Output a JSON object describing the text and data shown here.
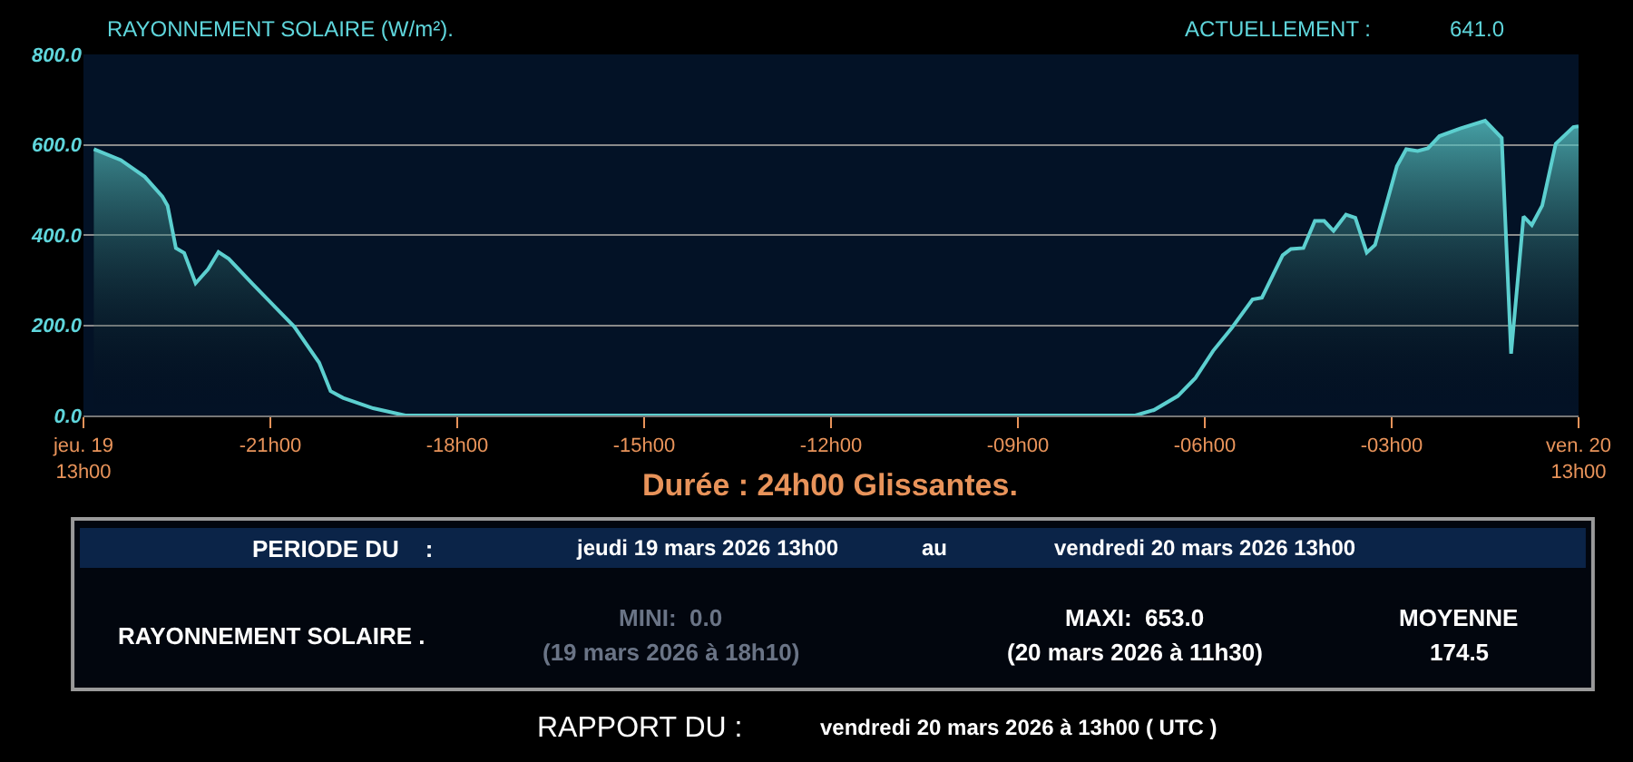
{
  "chart_data": {
    "type": "area",
    "title": "RAYONNEMENT SOLAIRE (W/m²).",
    "x": [
      "2026-03-19T13:10",
      "2026-03-19T13:36",
      "2026-03-19T13:59",
      "2026-03-19T14:16",
      "2026-03-19T14:21",
      "2026-03-19T14:29",
      "2026-03-19T14:37",
      "2026-03-19T14:48",
      "2026-03-19T15:00",
      "2026-03-19T15:10",
      "2026-03-19T15:20",
      "2026-03-19T15:43",
      "2026-03-19T16:06",
      "2026-03-19T16:23",
      "2026-03-19T16:47",
      "2026-03-19T16:58",
      "2026-03-19T17:10",
      "2026-03-19T17:39",
      "2026-03-19T18:10",
      "2026-03-20T05:53",
      "2026-03-20T06:11",
      "2026-03-20T06:34",
      "2026-03-20T06:51",
      "2026-03-20T07:08",
      "2026-03-20T07:26",
      "2026-03-20T07:46",
      "2026-03-20T07:55",
      "2026-03-20T08:15",
      "2026-03-20T08:23",
      "2026-03-20T08:35",
      "2026-03-20T08:46",
      "2026-03-20T08:55",
      "2026-03-20T09:04",
      "2026-03-20T09:16",
      "2026-03-20T09:25",
      "2026-03-20T09:36",
      "2026-03-20T09:44",
      "2026-03-20T10:05",
      "2026-03-20T10:14",
      "2026-03-20T10:25",
      "2026-03-20T10:35",
      "2026-03-20T10:46",
      "2026-03-20T11:06",
      "2026-03-20T11:30",
      "2026-03-20T11:46",
      "2026-03-20T11:55",
      "2026-03-20T12:07",
      "2026-03-20T12:15",
      "2026-03-20T12:25",
      "2026-03-20T12:38",
      "2026-03-20T12:55",
      "2026-03-20T13:00"
    ],
    "series": [
      {
        "color": "#5ccfcf",
        "values": [
          590,
          566,
          529,
          485,
          465,
          371,
          360,
          293,
          324,
          362,
          347,
          291,
          237,
          197,
          117,
          54,
          39,
          16,
          0,
          0,
          12,
          43,
          83,
          143,
          194,
          257,
          261,
          355,
          369,
          371,
          431,
          431,
          409,
          445,
          438,
          361,
          378,
          552,
          590,
          586,
          592,
          619,
          636,
          653,
          615,
          137,
          441,
          422,
          465,
          602,
          639,
          641
        ]
      }
    ],
    "xlim": [
      "2026-03-19T13:00",
      "2026-03-20T13:00"
    ],
    "xticks": [
      {
        "value": "2026-03-19T13:00",
        "label": "jeu. 19\n13h00"
      },
      {
        "value": "2026-03-19T16:00",
        "label": "-21h00"
      },
      {
        "value": "2026-03-19T19:00",
        "label": "-18h00"
      },
      {
        "value": "2026-03-19T22:00",
        "label": "-15h00"
      },
      {
        "value": "2026-03-20T01:00",
        "label": "-12h00"
      },
      {
        "value": "2026-03-20T04:00",
        "label": "-09h00"
      },
      {
        "value": "2026-03-20T07:00",
        "label": "-06h00"
      },
      {
        "value": "2026-03-20T10:00",
        "label": "-03h00"
      },
      {
        "value": "2026-03-20T13:00",
        "label": "ven. 20\n13h00"
      }
    ],
    "ylim": [
      0,
      800
    ],
    "yticks": [
      {
        "value": 0,
        "label": "0.0"
      },
      {
        "value": 200,
        "label": "200.0"
      },
      {
        "value": 400,
        "label": "400.0"
      },
      {
        "value": 600,
        "label": "600.0"
      },
      {
        "value": 800,
        "label": "800.0"
      }
    ],
    "grid": "y",
    "marker": "none",
    "line_style": "solid",
    "annotations": [
      "ACTUELLEMENT :",
      "641.0",
      "Durée : 24h00 Glissantes.",
      "PERIODE DU    :",
      "jeudi 19 mars 2026 13h00",
      "au",
      "vendredi 20 mars 2026 13h00",
      "RAYONNEMENT SOLAIRE .",
      "MINI:  0.0",
      "(19 mars 2026 à 18h10)",
      "MAXI:  653.0",
      "(20 mars 2026 à 11h30)",
      "MOYENNE",
      "174.5",
      "RAPPORT DU :",
      "vendredi 20 mars 2026 à 13h00 ( UTC )"
    ]
  }
}
